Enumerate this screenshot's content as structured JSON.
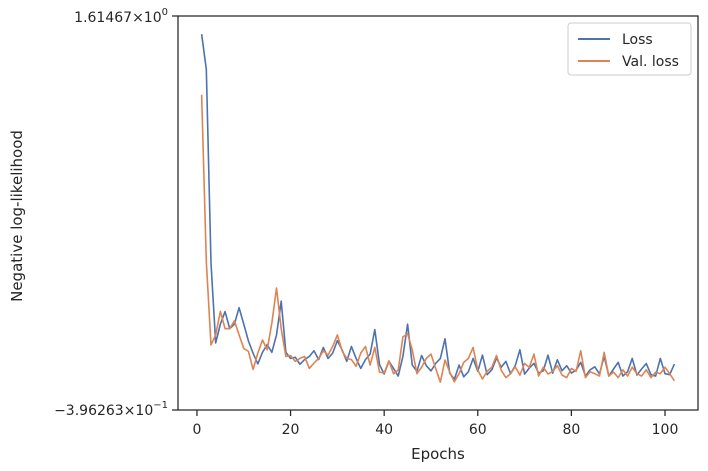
{
  "chart_data": {
    "type": "line",
    "xlabel": "Epochs",
    "ylabel": "Negative log-likelihood",
    "xlim": [
      -4.05,
      107.05
    ],
    "ylim": [
      -0.396263,
      1.61467
    ],
    "yscale": "log",
    "xticks": [
      0,
      20,
      40,
      60,
      80,
      100
    ],
    "ytick_labels": {
      "top": {
        "mant": "1.61467",
        "base": "10",
        "exp": "0"
      },
      "bottom": {
        "mant": "−3.96263",
        "base": "10",
        "exp": "−1"
      }
    },
    "legend": {
      "position": "upper right"
    },
    "grid": false,
    "x": [
      1,
      2,
      3,
      4,
      5,
      6,
      7,
      8,
      9,
      10,
      11,
      12,
      13,
      14,
      15,
      16,
      17,
      18,
      19,
      20,
      21,
      22,
      23,
      24,
      25,
      26,
      27,
      28,
      29,
      30,
      31,
      32,
      33,
      34,
      35,
      36,
      37,
      38,
      39,
      40,
      41,
      42,
      43,
      44,
      45,
      46,
      47,
      48,
      49,
      50,
      51,
      52,
      53,
      54,
      55,
      56,
      57,
      58,
      59,
      60,
      61,
      62,
      63,
      64,
      65,
      66,
      67,
      68,
      69,
      70,
      71,
      72,
      73,
      74,
      75,
      76,
      77,
      78,
      79,
      80,
      81,
      82,
      83,
      84,
      85,
      86,
      87,
      88,
      89,
      90,
      91,
      92,
      93,
      94,
      95,
      96,
      97,
      98,
      99,
      100,
      101,
      102
    ],
    "series": [
      {
        "name": "Loss",
        "color": "#4c72b0",
        "values": [
          1.522,
          1.342,
          0.353,
          -0.054,
          0.042,
          0.106,
          0.019,
          0.042,
          0.126,
          0.042,
          -0.044,
          -0.107,
          -0.161,
          -0.102,
          -0.062,
          -0.102,
          -0.013,
          0.159,
          -0.102,
          -0.133,
          -0.127,
          -0.163,
          -0.139,
          -0.123,
          -0.094,
          -0.139,
          -0.077,
          -0.133,
          -0.106,
          -0.042,
          -0.089,
          -0.148,
          -0.072,
          -0.133,
          -0.184,
          -0.139,
          -0.111,
          0.014,
          -0.164,
          -0.213,
          -0.148,
          -0.184,
          -0.223,
          -0.123,
          0.042,
          -0.167,
          -0.199,
          -0.118,
          -0.17,
          -0.197,
          -0.159,
          -0.133,
          -0.033,
          -0.208,
          -0.239,
          -0.167,
          -0.227,
          -0.201,
          -0.133,
          -0.199,
          -0.116,
          -0.216,
          -0.191,
          -0.131,
          -0.178,
          -0.148,
          -0.211,
          -0.17,
          -0.089,
          -0.213,
          -0.182,
          -0.158,
          -0.208,
          -0.196,
          -0.116,
          -0.208,
          -0.14,
          -0.196,
          -0.17,
          -0.208,
          -0.193,
          -0.153,
          -0.223,
          -0.191,
          -0.176,
          -0.212,
          -0.123,
          -0.223,
          -0.187,
          -0.153,
          -0.223,
          -0.201,
          -0.133,
          -0.218,
          -0.187,
          -0.159,
          -0.216,
          -0.223,
          -0.133,
          -0.211,
          -0.216,
          -0.162
        ]
      },
      {
        "name": "Val. loss",
        "color": "#dd8452",
        "values": [
          1.213,
          0.361,
          -0.064,
          -0.013,
          0.107,
          0.019,
          0.019,
          0.059,
          -0.013,
          -0.082,
          -0.097,
          -0.189,
          -0.106,
          -0.039,
          -0.089,
          0.047,
          0.226,
          0.019,
          -0.123,
          -0.118,
          -0.148,
          -0.133,
          -0.123,
          -0.184,
          -0.157,
          -0.133,
          -0.094,
          -0.116,
          -0.072,
          -0.013,
          -0.094,
          -0.133,
          -0.139,
          -0.173,
          -0.106,
          -0.072,
          -0.167,
          -0.077,
          -0.203,
          -0.208,
          -0.145,
          -0.211,
          -0.193,
          -0.023,
          -0.007,
          -0.089,
          -0.211,
          -0.178,
          -0.133,
          -0.111,
          -0.184,
          -0.254,
          -0.141,
          -0.203,
          -0.252,
          -0.211,
          -0.153,
          -0.133,
          -0.077,
          -0.193,
          -0.238,
          -0.199,
          -0.178,
          -0.118,
          -0.193,
          -0.231,
          -0.211,
          -0.176,
          -0.218,
          -0.159,
          -0.178,
          -0.111,
          -0.223,
          -0.178,
          -0.213,
          -0.199,
          -0.17,
          -0.218,
          -0.231,
          -0.184,
          -0.199,
          -0.094,
          -0.231,
          -0.201,
          -0.211,
          -0.223,
          -0.102,
          -0.223,
          -0.203,
          -0.231,
          -0.191,
          -0.223,
          -0.178,
          -0.211,
          -0.223,
          -0.191,
          -0.231,
          -0.203,
          -0.211,
          -0.178,
          -0.211,
          -0.247
        ]
      }
    ]
  }
}
